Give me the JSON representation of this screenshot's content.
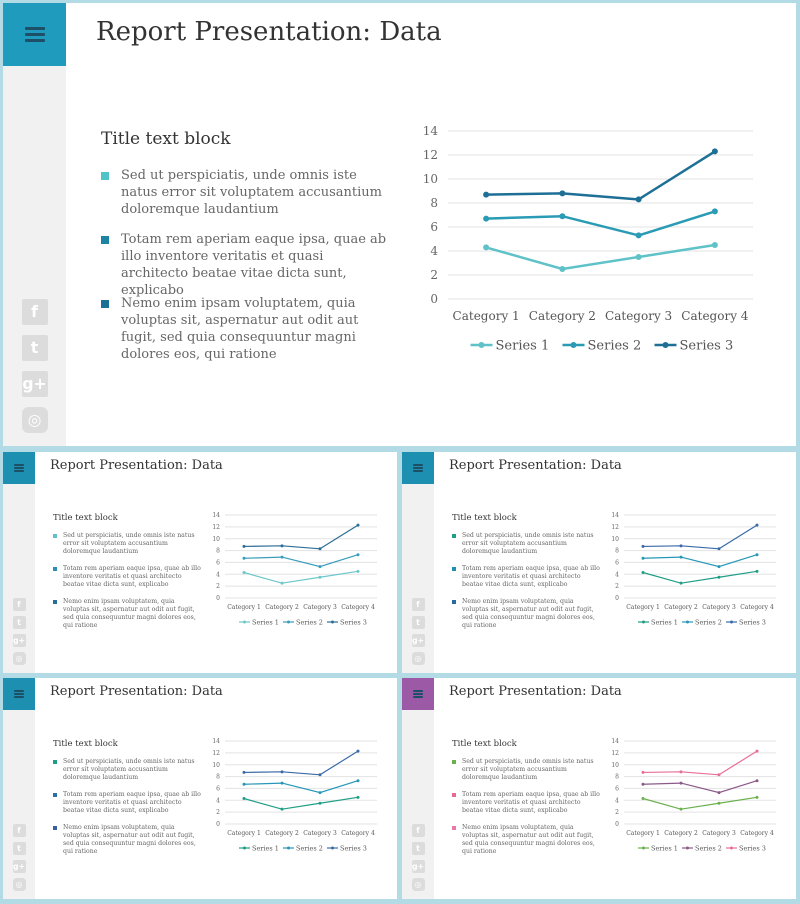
{
  "slides": [
    {
      "title": "Report Presentation: Data",
      "block_title": "Title text block",
      "colors": {
        "menu_bg": "#1e9bbd",
        "bullets": [
          "#4fc3c9",
          "#1d84a6",
          "#1d6f96"
        ],
        "series": [
          "#5ec2c8",
          "#2a9bb5",
          "#1e6f96"
        ]
      },
      "bullets": [
        "Sed ut perspiciatis, unde omnis iste natus error sit voluptatem accusantium doloremque laudantium",
        "Totam rem aperiam eaque ipsa, quae ab illo inventore veritatis et quasi architecto beatae vitae dicta sunt, explicabo",
        "Nemo enim ipsam voluptatem, quia voluptas sit, aspernatur aut odit aut fugit, sed quia consequuntur magni dolores eos, qui ratione"
      ]
    },
    {
      "title": "Report Presentation: Data",
      "block_title": "Title text block",
      "colors": {
        "menu_bg": "#1d8fb0",
        "bullets": [
          "#5ec2c8",
          "#2a8fb3",
          "#276d96"
        ],
        "series": [
          "#6cc7cb",
          "#3a9dbb",
          "#2c6e97"
        ]
      },
      "bullets": [
        "Sed ut perspiciatis, unde omnis iste natus error sit voluptatem accusantium doloremque laudantium",
        "Totam rem aperiam eaque ipsa, quae ab illo inventore veritatis et quasi architecto beatae vitae dicta sunt, explicabo",
        "Nemo enim ipsam voluptatem, quia voluptas sit, aspernatur aut odit aut fugit, sed quia consequuntur magni dolores eos, qui ratione"
      ]
    },
    {
      "title": "Report Presentation: Data",
      "block_title": "Title text block",
      "colors": {
        "menu_bg": "#1d8fb0",
        "bullets": [
          "#1e9e86",
          "#1f8fb0",
          "#2a6aa0"
        ],
        "series": [
          "#1e9e86",
          "#2797b8",
          "#3a6aa8"
        ]
      },
      "bullets": [
        "Sed ut perspiciatis, unde omnis iste natus error sit voluptatem accusantium doloremque laudantium",
        "Totam rem aperiam eaque ipsa, quae ab illo inventore veritatis et quasi architecto beatae vitae dicta sunt, explicabo",
        "Nemo enim ipsam voluptatem, quia voluptas sit, aspernatur aut odit aut fugit, sed quia consequuntur magni dolores eos, qui ratione"
      ]
    },
    {
      "title": "Report Presentation: Data",
      "block_title": "Title text block",
      "colors": {
        "menu_bg": "#1d8fb0",
        "bullets": [
          "#1e9e86",
          "#2a70a6",
          "#3a5f9a"
        ],
        "series": [
          "#1e9e86",
          "#2797b8",
          "#3a6aa8"
        ]
      },
      "bullets": [
        "Sed ut perspiciatis, unde omnis iste natus error sit voluptatem accusantium doloremque laudantium",
        "Totam rem aperiam eaque ipsa, quae ab illo inventore veritatis et quasi architecto beatae vitae dicta sunt, explicabo",
        "Nemo enim ipsam voluptatem, quia voluptas sit, aspernatur aut odit aut fugit, sed quia consequuntur magni dolores eos, qui ratione"
      ]
    },
    {
      "title": "Report Presentation: Data",
      "block_title": "Title text block",
      "colors": {
        "menu_bg": "#9b59a6",
        "bullets": [
          "#6ab04c",
          "#e66a96",
          "#e878a6"
        ],
        "series": [
          "#6ab04c",
          "#8a5a88",
          "#e86d9a"
        ]
      },
      "bullets": [
        "Sed ut perspiciatis, unde omnis iste natus error sit voluptatem accusantium doloremque laudantium",
        "Totam rem aperiam eaque ipsa, quae ab illo inventore veritatis et quasi architecto beatae vitae dicta sunt, explicabo",
        "Nemo enim ipsam voluptatem, quia voluptas sit, aspernatur aut odit aut fugit, sed quia consequuntur magni dolores eos, qui ratione"
      ]
    }
  ],
  "social_icons": [
    "facebook-icon",
    "twitter-icon",
    "google-plus-icon",
    "instagram-icon"
  ],
  "social_glyphs": [
    "f",
    "t",
    "g+",
    "◎"
  ],
  "chart_data": {
    "type": "line",
    "categories": [
      "Category 1",
      "Category 2",
      "Category 3",
      "Category 4"
    ],
    "series": [
      {
        "name": "Series 1",
        "values": [
          4.3,
          2.5,
          3.5,
          4.5
        ]
      },
      {
        "name": "Series 2",
        "values": [
          6.7,
          6.9,
          5.3,
          7.3
        ]
      },
      {
        "name": "Series 3",
        "values": [
          8.7,
          8.8,
          8.3,
          12.3
        ]
      }
    ],
    "y_ticks": [
      "0",
      "2",
      "4",
      "6",
      "8",
      "10",
      "12",
      "14"
    ],
    "ylim": [
      0,
      14
    ],
    "grid": true,
    "legend": "bottom"
  }
}
